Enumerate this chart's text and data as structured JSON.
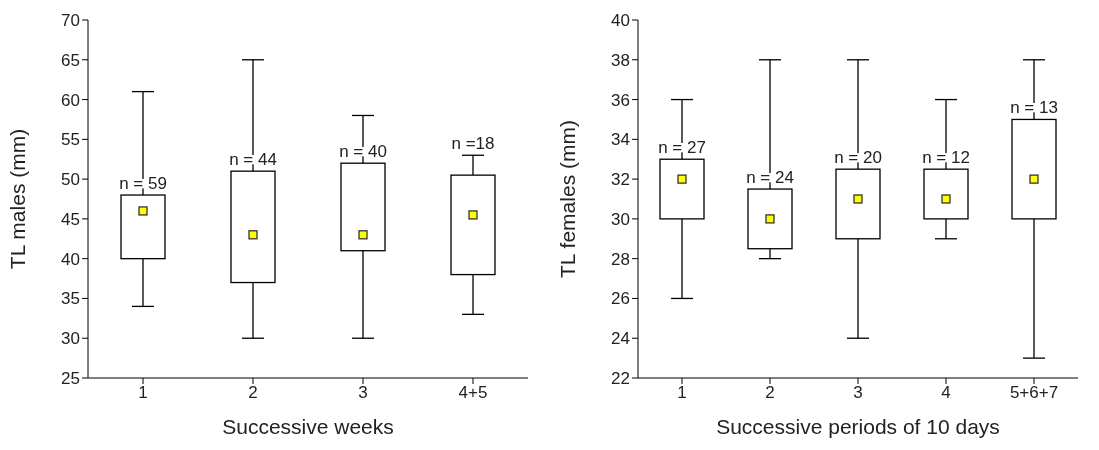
{
  "chart_data": [
    {
      "type": "box",
      "xlabel": "Successive weeks",
      "ylabel": "TL males (mm)",
      "categories": [
        "1",
        "2",
        "3",
        "4+5"
      ],
      "ylim": [
        25,
        70
      ],
      "yticks": [
        25,
        30,
        35,
        40,
        45,
        50,
        55,
        60,
        65,
        70
      ],
      "grid": false,
      "legend": false,
      "boxes": [
        {
          "low": 34,
          "q1": 40,
          "median": 46,
          "q3": 48,
          "high": 61
        },
        {
          "low": 30,
          "q1": 37,
          "median": 43,
          "q3": 51,
          "high": 65
        },
        {
          "low": 30,
          "q1": 41,
          "median": 43,
          "q3": 52,
          "high": 58
        },
        {
          "low": 33,
          "q1": 38,
          "median": 45.5,
          "q3": 50.5,
          "high": 53
        }
      ],
      "annotations": [
        {
          "text": "n = 59",
          "x": "1",
          "y": 48
        },
        {
          "text": "n = 44",
          "x": "2",
          "y": 51
        },
        {
          "text": "n = 40",
          "x": "3",
          "y": 52
        },
        {
          "text": "n =18",
          "x": "4+5",
          "y": 53
        }
      ]
    },
    {
      "type": "box",
      "xlabel": "Successive periods of 10 days",
      "ylabel": "TL females (mm)",
      "categories": [
        "1",
        "2",
        "3",
        "4",
        "5+6+7"
      ],
      "ylim": [
        22,
        40
      ],
      "yticks": [
        22,
        24,
        26,
        28,
        30,
        32,
        34,
        36,
        38,
        40
      ],
      "grid": false,
      "legend": false,
      "boxes": [
        {
          "low": 26,
          "q1": 30,
          "median": 32,
          "q3": 33,
          "high": 36
        },
        {
          "low": 28,
          "q1": 28.5,
          "median": 30,
          "q3": 31.5,
          "high": 38
        },
        {
          "low": 24,
          "q1": 29,
          "median": 31,
          "q3": 32.5,
          "high": 38
        },
        {
          "low": 29,
          "q1": 30,
          "median": 31,
          "q3": 32.5,
          "high": 36
        },
        {
          "low": 23,
          "q1": 30,
          "median": 32,
          "q3": 35,
          "high": 38
        }
      ],
      "annotations": [
        {
          "text": "n = 27",
          "x": "1",
          "y": 33
        },
        {
          "text": "n = 24",
          "x": "2",
          "y": 31.5
        },
        {
          "text": "n = 20",
          "x": "3",
          "y": 32.5
        },
        {
          "text": "n = 12",
          "x": "4",
          "y": 32.5
        },
        {
          "text": "n = 13",
          "x": "5+6+7",
          "y": 35
        }
      ]
    }
  ]
}
